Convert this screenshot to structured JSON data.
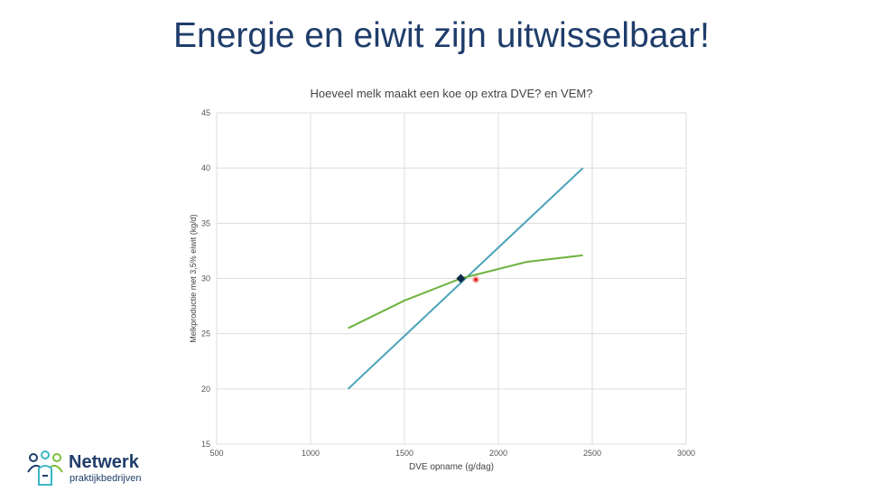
{
  "slide": {
    "title": "Energie en eiwit zijn uitwisselbaar!"
  },
  "logo": {
    "name": "Netwerk",
    "subtitle": "praktijkbedrijven",
    "colors": {
      "navy": "#1f3d6b",
      "teal": "#3bb6c6",
      "green": "#7bbf3a"
    }
  },
  "chart_data": {
    "type": "line",
    "title": "Hoeveel melk maakt een koe op extra DVE? en VEM?",
    "xlabel": "DVE opname (g/dag)",
    "ylabel": "Melkproductie met 3,5% eiwit (kg/d)",
    "xlim": [
      500,
      3000
    ],
    "ylim": [
      15,
      45
    ],
    "x_ticks": [
      500,
      1000,
      1500,
      2000,
      2500,
      3000
    ],
    "y_ticks": [
      15,
      20,
      25,
      30,
      35,
      40,
      45
    ],
    "grid": true,
    "series": [
      {
        "color": "#4aa3b8",
        "x": [
          1200,
          2450
        ],
        "y": [
          20,
          40
        ]
      },
      {
        "color": "#6db33f",
        "x": [
          1200,
          1500,
          1800,
          2150,
          2450
        ],
        "y": [
          25.5,
          28,
          30,
          31.5,
          32.1
        ]
      }
    ],
    "markers": [
      {
        "x": 1800,
        "y": 30,
        "shape": "diamond",
        "color": "#0f2a4a"
      },
      {
        "x": 1880,
        "y": 29.9,
        "shape": "circle",
        "color": "#e02020"
      }
    ]
  }
}
